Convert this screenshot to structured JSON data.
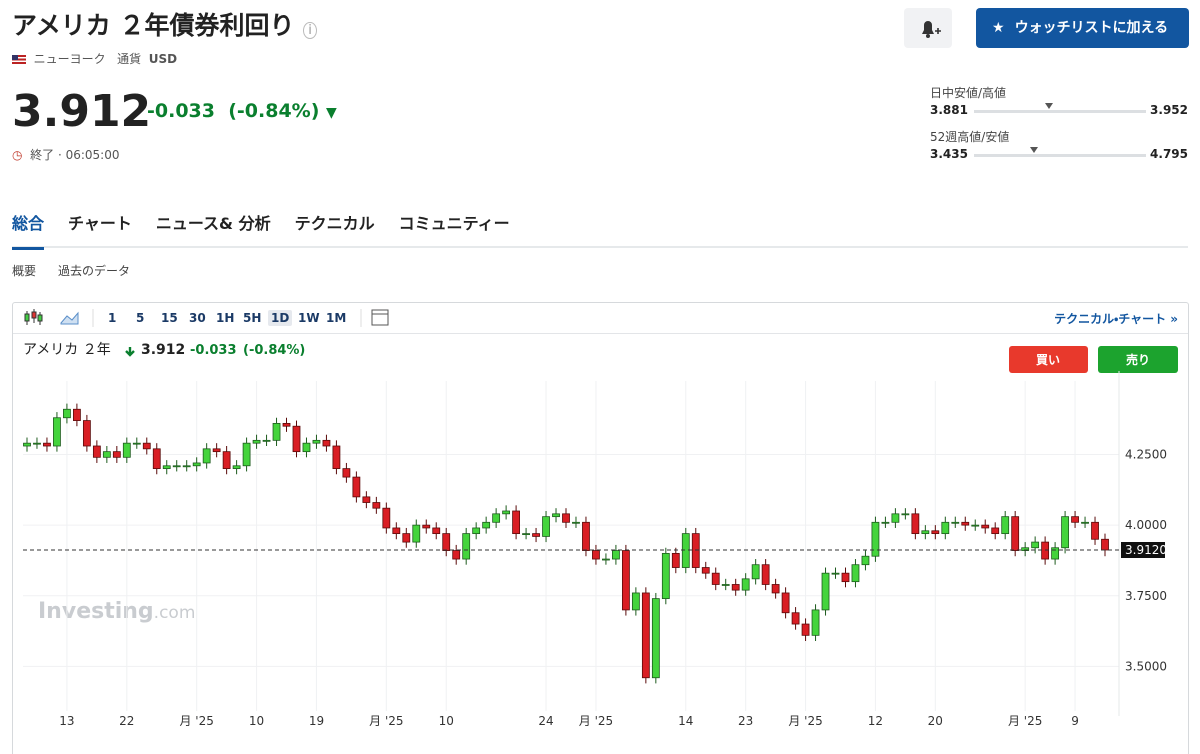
{
  "header": {
    "title": "アメリカ ２年債券利回り",
    "exchange": "ニューヨーク",
    "currency_label": "通貨",
    "currency": "USD",
    "price": 3.912,
    "change": -0.033,
    "change_pct": "(-0.84%)",
    "status": "終了 · 06:05:00",
    "watchlist_button": "ウォッチリストに加える"
  },
  "ranges": [
    {
      "label": "日中安値/高値",
      "low": 3.881,
      "high": 3.952
    },
    {
      "label": "52週高値/安値",
      "low": 3.435,
      "high": 4.795
    }
  ],
  "tabs": [
    "総合",
    "チャート",
    "ニュース& 分析",
    "テクニカル",
    "コミュニティー"
  ],
  "subtabs": [
    "概要",
    "過去のデータ"
  ],
  "toolbar": {
    "intervals": [
      "1",
      "5",
      "15",
      "30",
      "1H",
      "5H",
      "1D",
      "1W",
      "1M"
    ],
    "active": "1D",
    "link": "テクニカル・チャート »"
  },
  "chart_legend": {
    "name": "アメリカ ２年",
    "price": "3.912",
    "change": "-0.033",
    "change_pct": "(-0.84%)",
    "buy": "買い",
    "sell": "売り"
  },
  "watermark": {
    "brand": "Investing",
    "suffix": ".com"
  },
  "chart_data": {
    "type": "candlestick",
    "up_color": "#44d43c",
    "down_color": "#d91e24",
    "grid": true,
    "ylim": [
      3.36,
      4.51
    ],
    "yticks": [
      {
        "value": 3.5,
        "label": "3.5000"
      },
      {
        "value": 3.75,
        "label": "3.7500"
      },
      {
        "value": 4.0,
        "label": "4.0000"
      },
      {
        "value": 4.25,
        "label": "4.2500"
      }
    ],
    "last_price": {
      "value": 3.912,
      "label": "3.9120"
    },
    "categories": [
      null,
      null,
      null,
      null,
      "13",
      null,
      null,
      null,
      null,
      null,
      "22",
      null,
      null,
      null,
      null,
      null,
      null,
      "月 '25",
      null,
      null,
      null,
      null,
      null,
      "10",
      null,
      null,
      null,
      null,
      null,
      "19",
      null,
      null,
      null,
      null,
      null,
      null,
      "月 '25",
      null,
      null,
      null,
      null,
      null,
      "10",
      null,
      null,
      null,
      null,
      null,
      null,
      null,
      null,
      null,
      "24",
      null,
      null,
      null,
      null,
      "月 '25",
      null,
      null,
      null,
      null,
      null,
      null,
      null,
      null,
      "14",
      null,
      null,
      null,
      null,
      null,
      "23",
      null,
      null,
      null,
      null,
      null,
      "月 '25",
      null,
      null,
      null,
      null,
      null,
      null,
      "12",
      null,
      null,
      null,
      null,
      null,
      "20",
      null,
      null,
      null,
      null,
      null,
      null,
      null,
      null,
      "月 '25",
      null,
      null,
      null,
      null,
      "9",
      null,
      null,
      null
    ],
    "open": [
      4.28,
      4.29,
      4.29,
      4.28,
      4.38,
      4.41,
      4.37,
      4.28,
      4.24,
      4.26,
      4.24,
      4.29,
      4.29,
      4.27,
      4.2,
      4.21,
      4.21,
      4.21,
      4.22,
      4.27,
      4.26,
      4.2,
      4.21,
      4.29,
      4.3,
      4.3,
      4.36,
      4.35,
      4.26,
      4.29,
      4.3,
      4.28,
      4.2,
      4.17,
      4.1,
      4.08,
      4.06,
      3.99,
      3.97,
      3.94,
      4.0,
      3.99,
      3.97,
      3.91,
      3.88,
      3.97,
      3.99,
      4.01,
      4.04,
      4.05,
      3.97,
      3.97,
      3.96,
      4.03,
      4.04,
      4.01,
      4.01,
      3.91,
      3.88,
      3.88,
      3.91,
      3.7,
      3.76,
      3.46,
      3.74,
      3.9,
      3.85,
      3.97,
      3.85,
      3.83,
      3.79,
      3.79,
      3.77,
      3.81,
      3.86,
      3.79,
      3.76,
      3.69,
      3.65,
      3.61,
      3.7,
      3.83,
      3.83,
      3.8,
      3.86,
      3.89,
      4.01,
      4.01,
      4.04,
      4.04,
      3.97,
      3.98,
      3.97,
      4.01,
      4.01,
      4.0,
      4.0,
      3.99,
      3.97,
      4.03,
      3.91,
      3.92,
      3.94,
      3.88,
      3.92,
      4.03,
      4.01,
      4.01,
      3.95
    ],
    "high": [
      4.31,
      4.31,
      4.31,
      4.4,
      4.43,
      4.43,
      4.39,
      4.3,
      4.28,
      4.28,
      4.31,
      4.31,
      4.31,
      4.29,
      4.23,
      4.23,
      4.23,
      4.24,
      4.29,
      4.29,
      4.28,
      4.23,
      4.31,
      4.32,
      4.32,
      4.38,
      4.38,
      4.37,
      4.31,
      4.32,
      4.32,
      4.3,
      4.22,
      4.19,
      4.12,
      4.1,
      4.08,
      4.01,
      3.99,
      4.02,
      4.02,
      4.01,
      3.99,
      3.93,
      3.99,
      4.01,
      4.03,
      4.06,
      4.07,
      4.07,
      3.99,
      3.99,
      4.05,
      4.06,
      4.06,
      4.03,
      4.03,
      3.93,
      3.9,
      3.93,
      3.93,
      3.78,
      3.78,
      3.76,
      3.92,
      3.92,
      3.99,
      3.99,
      3.87,
      3.85,
      3.81,
      3.81,
      3.83,
      3.88,
      3.88,
      3.81,
      3.78,
      3.71,
      3.67,
      3.72,
      3.85,
      3.85,
      3.85,
      3.88,
      3.91,
      4.03,
      4.03,
      4.06,
      4.06,
      4.06,
      4.0,
      4.0,
      4.03,
      4.03,
      4.03,
      4.02,
      4.02,
      4.01,
      4.05,
      4.05,
      3.94,
      3.96,
      3.96,
      3.94,
      4.05,
      4.05,
      4.03,
      4.03,
      3.97
    ],
    "low": [
      4.26,
      4.27,
      4.26,
      4.26,
      4.36,
      4.35,
      4.26,
      4.22,
      4.22,
      4.22,
      4.22,
      4.27,
      4.25,
      4.18,
      4.18,
      4.19,
      4.19,
      4.19,
      4.2,
      4.24,
      4.18,
      4.18,
      4.19,
      4.27,
      4.28,
      4.28,
      4.33,
      4.24,
      4.24,
      4.27,
      4.26,
      4.18,
      4.15,
      4.08,
      4.06,
      4.04,
      3.97,
      3.95,
      3.92,
      3.92,
      3.97,
      3.95,
      3.89,
      3.86,
      3.86,
      3.95,
      3.97,
      3.99,
      4.02,
      3.95,
      3.95,
      3.94,
      3.94,
      4.01,
      3.99,
      3.99,
      3.89,
      3.86,
      3.86,
      3.86,
      3.68,
      3.68,
      3.44,
      3.44,
      3.72,
      3.83,
      3.83,
      3.83,
      3.81,
      3.77,
      3.77,
      3.75,
      3.75,
      3.79,
      3.77,
      3.74,
      3.67,
      3.63,
      3.59,
      3.59,
      3.68,
      3.81,
      3.78,
      3.78,
      3.84,
      3.87,
      3.99,
      3.99,
      4.02,
      3.95,
      3.95,
      3.95,
      3.95,
      3.99,
      3.98,
      3.98,
      3.97,
      3.95,
      3.95,
      3.89,
      3.89,
      3.9,
      3.86,
      3.86,
      3.9,
      3.99,
      3.99,
      3.93,
      3.89
    ],
    "close": [
      4.29,
      4.29,
      4.28,
      4.38,
      4.41,
      4.37,
      4.28,
      4.24,
      4.26,
      4.24,
      4.29,
      4.29,
      4.27,
      4.2,
      4.21,
      4.21,
      4.21,
      4.22,
      4.27,
      4.26,
      4.2,
      4.21,
      4.29,
      4.3,
      4.3,
      4.36,
      4.35,
      4.26,
      4.29,
      4.3,
      4.28,
      4.2,
      4.17,
      4.1,
      4.08,
      4.06,
      3.99,
      3.97,
      3.94,
      4.0,
      3.99,
      3.97,
      3.91,
      3.88,
      3.97,
      3.99,
      4.01,
      4.04,
      4.05,
      3.97,
      3.97,
      3.96,
      4.03,
      4.04,
      4.01,
      4.01,
      3.91,
      3.88,
      3.88,
      3.91,
      3.7,
      3.76,
      3.46,
      3.74,
      3.9,
      3.85,
      3.97,
      3.85,
      3.83,
      3.79,
      3.79,
      3.77,
      3.81,
      3.86,
      3.79,
      3.76,
      3.69,
      3.65,
      3.61,
      3.7,
      3.83,
      3.83,
      3.8,
      3.86,
      3.89,
      4.01,
      4.01,
      4.04,
      4.04,
      3.97,
      3.98,
      3.97,
      4.01,
      4.01,
      4.0,
      4.0,
      3.99,
      3.97,
      4.03,
      3.91,
      3.92,
      3.94,
      3.88,
      3.92,
      4.03,
      4.01,
      4.01,
      3.95,
      3.912
    ]
  }
}
